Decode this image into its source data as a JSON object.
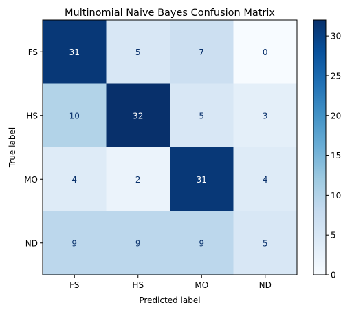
{
  "chart_data": {
    "type": "heatmap",
    "title": "Multinomial Naive Bayes Confusion Matrix",
    "xlabel": "Predicted label",
    "ylabel": "True label",
    "x_categories": [
      "FS",
      "HS",
      "MO",
      "ND"
    ],
    "y_categories": [
      "FS",
      "HS",
      "MO",
      "ND"
    ],
    "values": [
      [
        31,
        5,
        7,
        0
      ],
      [
        10,
        32,
        5,
        3
      ],
      [
        4,
        2,
        31,
        4
      ],
      [
        9,
        9,
        9,
        5
      ]
    ],
    "colormap": "Blues",
    "color_range": [
      0,
      32
    ],
    "colorbar_ticks": [
      0,
      5,
      10,
      15,
      20,
      25,
      30
    ],
    "dark_text_color": "#08306b",
    "light_text_color": "#ffffff",
    "grid": false
  }
}
